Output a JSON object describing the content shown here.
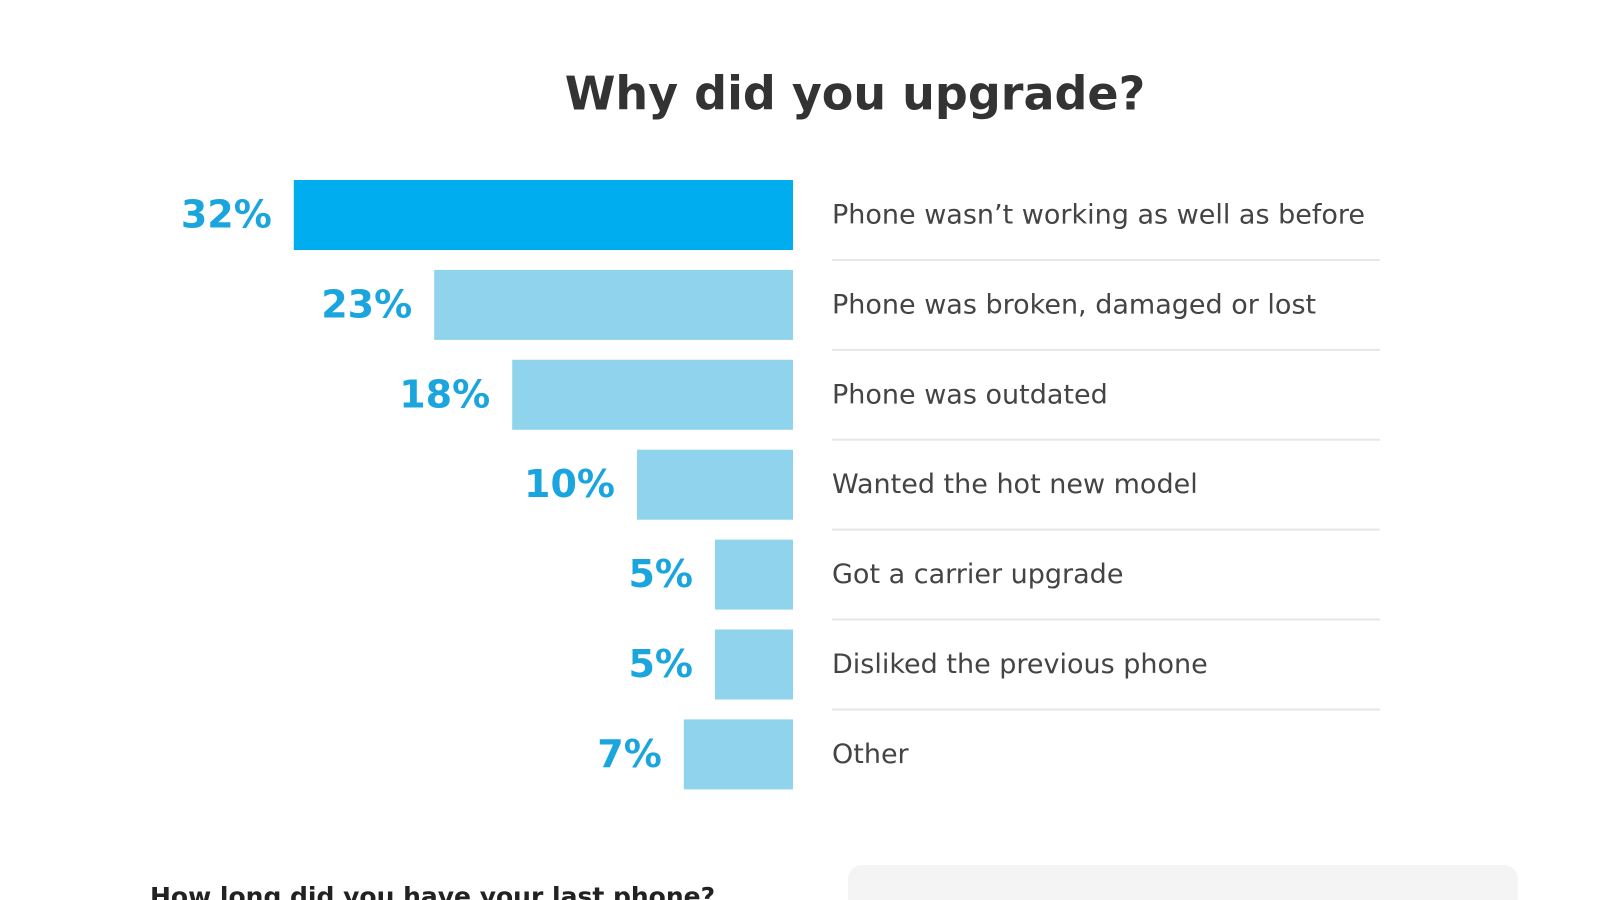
{
  "chart_data": {
    "type": "bar",
    "orientation": "horizontal",
    "title": "Why did you upgrade?",
    "categories": [
      "Phone wasn’t working as well as before",
      "Phone was broken, damaged or lost",
      "Phone was outdated",
      "Wanted the hot new model",
      "Got a carrier upgrade",
      "Disliked the previous phone",
      "Other"
    ],
    "values": [
      32,
      23,
      18,
      10,
      5,
      5,
      7
    ],
    "value_labels": [
      "32%",
      "23%",
      "18%",
      "10%",
      "5%",
      "5%",
      "7%"
    ],
    "colors": [
      "#00aeef",
      "#8fd4ec",
      "#8fd4ec",
      "#8fd4ec",
      "#8fd4ec",
      "#8fd4ec",
      "#8fd4ec"
    ]
  },
  "next_section": {
    "title": "How long did you have your last phone?"
  }
}
